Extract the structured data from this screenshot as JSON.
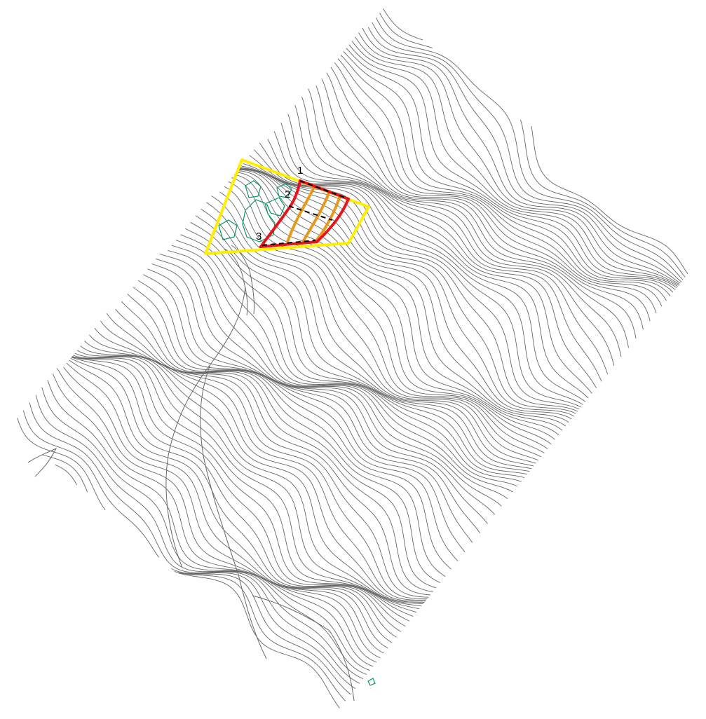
{
  "map": {
    "contour_color": "#666666",
    "structure_color": "#009966",
    "boundary_color": "#ffee00",
    "slip_edge_color": "#e8141c",
    "inner_line_color": "#e39a1d",
    "section_line_color": "#000000",
    "labels": [
      "1",
      "2",
      "3"
    ]
  }
}
